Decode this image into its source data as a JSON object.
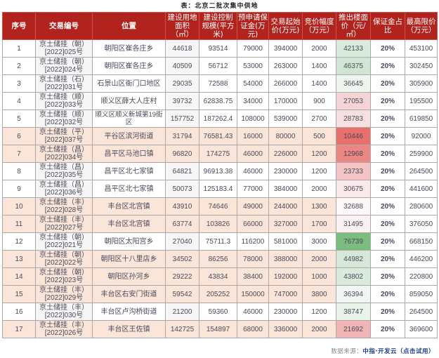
{
  "title": "表：北京二批次集中供地",
  "table": {
    "headers": [
      "序号",
      "交易编号",
      "位置",
      "建设用地面积（㎡）",
      "建设控制规模(平方米)",
      "预申请保证金(万元)",
      "交易起始价(万元)",
      "竞价幅度（万元）",
      "推出楼面价（元/㎡）",
      "保证金占比",
      "最高限价（万元）"
    ],
    "rows": [
      {
        "seq": "1",
        "code_a": "京土储挂（朝）",
        "code_b": "[2022]025号",
        "location": "朝阳区崔各庄乡",
        "area": "44618",
        "scale": "93514",
        "deposit": "79000",
        "start_price": "394000",
        "increment": "2000",
        "floor_price": "42133",
        "ratio": "20%",
        "max_price": "453100",
        "row_style": "white",
        "floor_color": "#d9ecdc"
      },
      {
        "seq": "2",
        "code_a": "京土储挂（朝）",
        "code_b": "[2022]024号",
        "location": "朝阳区崔各庄乡",
        "area": "40509",
        "scale": "56712",
        "deposit": "53000",
        "start_price": "263000",
        "increment": "1400",
        "floor_price": "46375",
        "ratio": "20%",
        "max_price": "302450",
        "row_style": "white",
        "floor_color": "#cfe6d2"
      },
      {
        "seq": "3",
        "code_a": "京土储挂（石）",
        "code_b": "[2022]031号",
        "location": "石景山区衙门口地区",
        "area": "29035",
        "scale": "72588",
        "deposit": "54000",
        "start_price": "266000",
        "increment": "1400",
        "floor_price": "36645",
        "ratio": "20%",
        "max_price": "305900",
        "row_style": "white",
        "floor_color": "#eff6f0"
      },
      {
        "seq": "4",
        "code_a": "京土储挂（顺）",
        "code_b": "[2022]033号",
        "location": "顺义区薛大人庄村",
        "area": "39732",
        "scale": "62838.75",
        "deposit": "34000",
        "start_price": "170000",
        "increment": "900",
        "floor_price": "27053",
        "ratio": "20%",
        "max_price": "195500",
        "row_style": "white",
        "floor_color": "#f6d3d5"
      },
      {
        "seq": "5",
        "code_a": "京土储挂（顺）",
        "code_b": "[2022]032号",
        "location": "顺义区顺义新城第19街区",
        "area": "157752",
        "scale": "187262.4",
        "deposit": "108000",
        "start_price": "539000",
        "increment": "2700",
        "floor_price": "28783",
        "ratio": "20%",
        "max_price": "619850",
        "row_style": "white",
        "floor_color": "#f8dfe1"
      },
      {
        "seq": "6",
        "code_a": "京土储挂（平）",
        "code_b": "[2022]037号",
        "location": "平谷区滨河街道",
        "area": "31794",
        "scale": "76581.43",
        "deposit": "16000",
        "start_price": "80000",
        "increment": "500",
        "floor_price": "10446",
        "ratio": "20%",
        "max_price": "92000",
        "row_style": "peach",
        "floor_color": "#e8706c"
      },
      {
        "seq": "7",
        "code_a": "京土储挂（昌）",
        "code_b": "[2022]034号",
        "location": "昌平区马池口镇",
        "area": "96820",
        "scale": "174275",
        "deposit": "46000",
        "start_price": "226000",
        "increment": "1200",
        "floor_price": "12968",
        "ratio": "20%",
        "max_price": "259900",
        "row_style": "peach",
        "floor_color": "#eb8683"
      },
      {
        "seq": "8",
        "code_a": "京土储挂（昌）",
        "code_b": "[2022]035号",
        "location": "昌平区北七家镇",
        "area": "64821",
        "scale": "96913.38",
        "deposit": "46000",
        "start_price": "230000",
        "increment": "1200",
        "floor_price": "23733",
        "ratio": "20%",
        "max_price": "264500",
        "row_style": "white",
        "floor_color": "#f3c3c5"
      },
      {
        "seq": "9",
        "code_a": "京土储挂（昌）",
        "code_b": "[2022]036号",
        "location": "昌平区北七家镇",
        "area": "50073",
        "scale": "125183.4",
        "deposit": "77000",
        "start_price": "384000",
        "increment": "2000",
        "floor_price": "30675",
        "ratio": "20%",
        "max_price": "441600",
        "row_style": "white",
        "floor_color": "#fae8ea"
      },
      {
        "seq": "10",
        "code_a": "京土储挂（丰）",
        "code_b": "[2022]028号",
        "location": "丰台区北宫镇",
        "area": "43910",
        "scale": "74646",
        "deposit": "49000",
        "start_price": "244000",
        "increment": "1300",
        "floor_price": "32688",
        "ratio": "20%",
        "max_price": "280600",
        "row_style": "peach",
        "floor_color": "#fcf7f8"
      },
      {
        "seq": "11",
        "code_a": "京土储挂（丰）",
        "code_b": "[2022]027号",
        "location": "丰台区北宫镇",
        "area": "63774",
        "scale": "103826",
        "deposit": "66000",
        "start_price": "327000",
        "increment": "1700",
        "floor_price": "31495",
        "ratio": "20%",
        "max_price": "376050",
        "row_style": "peach",
        "floor_color": "#fbf1f3"
      },
      {
        "seq": "12",
        "code_a": "京土储挂（朝）",
        "code_b": "[2022]021号",
        "location": "朝阳区太阳宫乡",
        "area": "27040",
        "scale": "75711.3",
        "deposit": "116200",
        "start_price": "581000",
        "increment": "3000",
        "floor_price": "76739",
        "ratio": "20%",
        "max_price": "668150",
        "row_style": "white",
        "floor_color": "#7abd7e"
      },
      {
        "seq": "13",
        "code_a": "京土储挂（朝）",
        "code_b": "[2022]022号",
        "location": "朝阳区十八里店乡",
        "area": "34502",
        "scale": "86256",
        "deposit": "78000",
        "start_price": "388000",
        "increment": "2000",
        "floor_price": "44982",
        "ratio": "20%",
        "max_price": "446200",
        "row_style": "peach",
        "floor_color": "#d6e9d8"
      },
      {
        "seq": "14",
        "code_a": "京土储挂（朝）",
        "code_b": "[2022]023号",
        "location": "朝阳区孙河乡",
        "area": "29222",
        "scale": "43834",
        "deposit": "38400",
        "start_price": "192000",
        "increment": "1000",
        "floor_price": "43802",
        "ratio": "20%",
        "max_price": "220800",
        "row_style": "peach",
        "floor_color": "#d9ecdc"
      },
      {
        "seq": "15",
        "code_a": "京土储挂（丰）",
        "code_b": "[2022]029号",
        "location": "丰台区右安门街道",
        "area": "59542",
        "scale": "205252",
        "deposit": "150000",
        "start_price": "747000",
        "increment": "3800",
        "floor_price": "36394",
        "ratio": "20%",
        "max_price": "859050",
        "row_style": "peach",
        "floor_color": "#f0f6f1"
      },
      {
        "seq": "16",
        "code_a": "京土储挂（丰）",
        "code_b": "[2022]030号",
        "location": "丰台区卢沟桥街道",
        "area": "21200",
        "scale": "59360",
        "deposit": "46000",
        "start_price": "230000",
        "increment": "1200",
        "floor_price": "38747",
        "ratio": "20%",
        "max_price": "264500",
        "row_style": "white",
        "floor_color": "#e9f3ea"
      },
      {
        "seq": "17",
        "code_a": "京土储挂（丰）",
        "code_b": "[2022]026号",
        "location": "丰台区王佐镇",
        "area": "142725",
        "scale": "154897",
        "deposit": "68000",
        "start_price": "336000",
        "increment": "2000",
        "floor_price": "21692",
        "ratio": "20%",
        "max_price": "369600",
        "row_style": "peach",
        "floor_color": "#f1b5b6"
      }
    ]
  },
  "source": {
    "label": "数据来源：",
    "link": "中指·开发云（点击试用）"
  },
  "colors": {
    "header_bg": "#b2231d",
    "peach_row": "#fae5d8",
    "source_link": "#1f3f8a"
  }
}
